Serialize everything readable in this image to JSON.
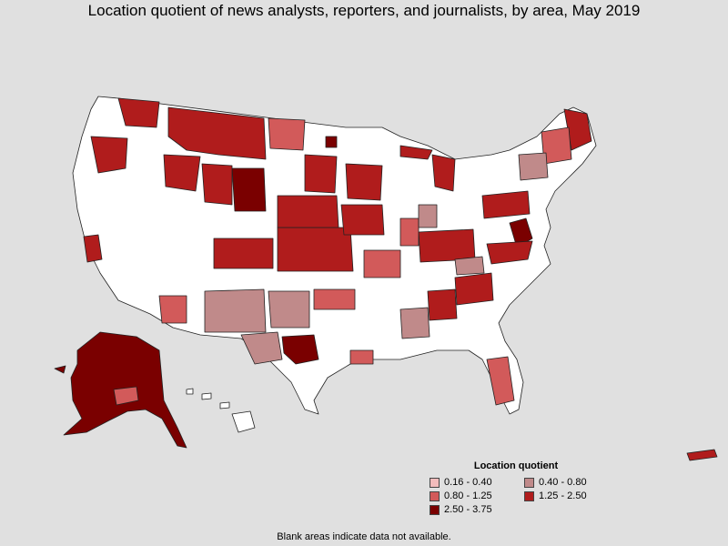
{
  "title": "Location quotient of news analysts, reporters, and journalists, by area, May 2019",
  "legend": {
    "title": "Location quotient",
    "items": [
      {
        "label": "0.16 - 0.40",
        "color": "#f2bcbc"
      },
      {
        "label": "0.40 - 0.80",
        "color": "#c08a8a"
      },
      {
        "label": "0.80 - 1.25",
        "color": "#d25a5a"
      },
      {
        "label": "1.25 - 2.50",
        "color": "#b01c1c"
      },
      {
        "label": "2.50 - 3.75",
        "color": "#7a0000"
      }
    ]
  },
  "note": "Blank areas indicate data not available.",
  "colors": {
    "background": "#e0e0e0",
    "no_data": "#ffffff",
    "border": "#222222"
  }
}
